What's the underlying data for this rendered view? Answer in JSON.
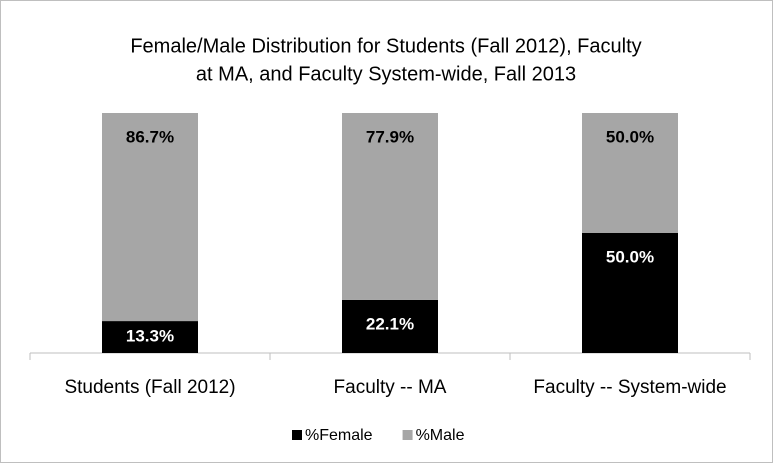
{
  "chart_data": {
    "type": "stacked_bar",
    "title": [
      "Female/Male Distribution for Students (Fall 2012), Faculty",
      "at MA, and Faculty System-wide, Fall 2013"
    ],
    "categories": [
      "Students (Fall 2012)",
      "Faculty -- MA",
      "Faculty -- System-wide"
    ],
    "series": [
      {
        "name": "%Female",
        "color": "#000000",
        "label_color": "#ffffff",
        "values": [
          13.3,
          22.1,
          50.0
        ],
        "value_labels": [
          "13.3%",
          "22.1%",
          "50.0%"
        ]
      },
      {
        "name": "%Male",
        "color": "#a6a6a6",
        "label_color": "#000000",
        "values": [
          86.7,
          77.9,
          50.0
        ],
        "value_labels": [
          "86.7%",
          "77.9%",
          "50.0%"
        ]
      }
    ],
    "ylim": [
      0,
      100
    ],
    "legend": "bottom"
  }
}
